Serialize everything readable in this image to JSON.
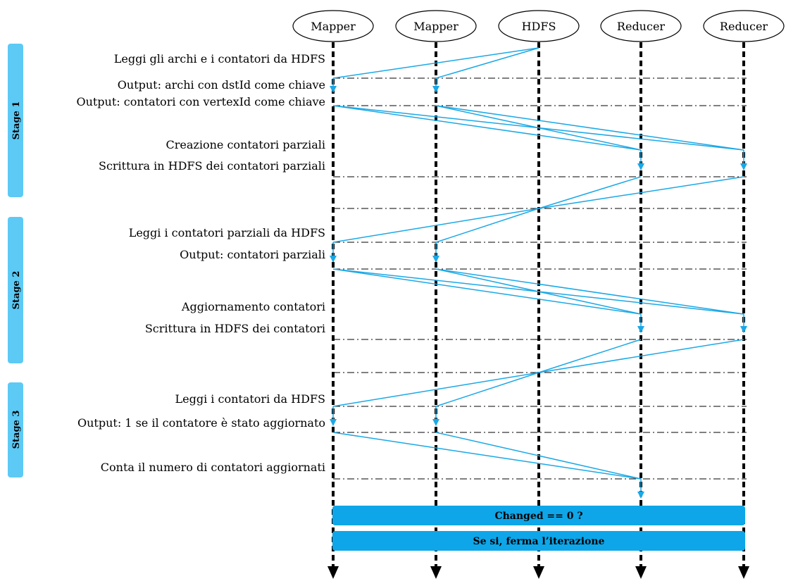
{
  "colors": {
    "accent": "#1aa8e6",
    "stage_tab": "#5ccaf5",
    "bar": "#0ea6e8",
    "lifeline": "#000000"
  },
  "actors": [
    {
      "name": "Mapper"
    },
    {
      "name": "Mapper"
    },
    {
      "name": "HDFS"
    },
    {
      "name": "Reducer"
    },
    {
      "name": "Reducer"
    }
  ],
  "stages": [
    {
      "label": "Stage 1"
    },
    {
      "label": "Stage 2"
    },
    {
      "label": "Stage 3"
    }
  ],
  "steps": [
    {
      "text": "Leggi gli archi e i contatori da HDFS"
    },
    {
      "text": "Output: archi con dstId come chiave"
    },
    {
      "text": "Output: contatori con vertexId come chiave"
    },
    {
      "text": "Creazione contatori parziali"
    },
    {
      "text": "Scrittura in HDFS dei contatori parziali"
    },
    {
      "text": "Leggi i contatori parziali da HDFS"
    },
    {
      "text": "Output: contatori parziali"
    },
    {
      "text": "Aggiornamento contatori"
    },
    {
      "text": "Scrittura in HDFS dei contatori"
    },
    {
      "text": "Leggi i contatori da HDFS"
    },
    {
      "text": "Output: 1 se il contatore è stato aggiornato"
    },
    {
      "text": "Conta il numero di contatori aggiornati"
    }
  ],
  "bars": [
    {
      "label": "Changed == 0 ?"
    },
    {
      "label": "Se si, ferma l’iterazione"
    }
  ]
}
